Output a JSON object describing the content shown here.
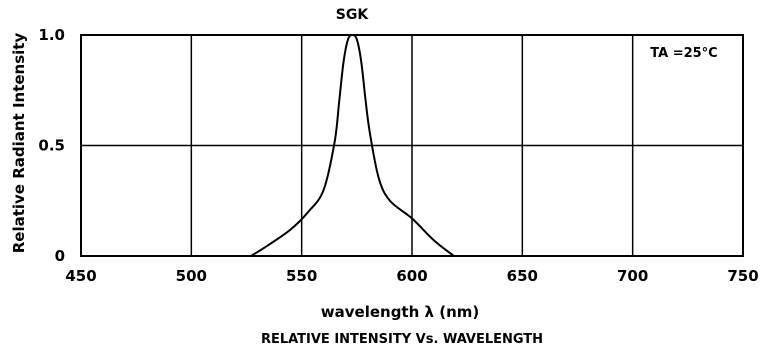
{
  "chart_data": {
    "type": "line",
    "title": "SGK",
    "xlabel": "wavelength  λ (nm)",
    "ylabel": "Relative Radiant Intensity",
    "caption": "RELATIVE INTENSITY Vs. WAVELENGTH",
    "annotation": "TA =25°C",
    "xlim": [
      450,
      750
    ],
    "ylim": [
      0,
      1.0
    ],
    "x_ticks": [
      450,
      500,
      550,
      600,
      650,
      700,
      750
    ],
    "x_tick_labels": [
      "450",
      "500",
      "550",
      "600",
      "650",
      "700",
      "750"
    ],
    "y_ticks": [
      0,
      0.5,
      1.0
    ],
    "y_tick_labels": [
      "0",
      "0.5",
      "1.0"
    ],
    "grid": true,
    "series": [
      {
        "x": [
          527,
          535,
          545,
          553,
          560,
          565,
          567,
          569,
          571,
          573,
          575,
          577,
          579,
          581,
          585,
          590,
          600,
          610,
          619
        ],
        "y": [
          0.0,
          0.05,
          0.12,
          0.2,
          0.3,
          0.52,
          0.7,
          0.88,
          0.98,
          1.0,
          0.98,
          0.88,
          0.7,
          0.55,
          0.35,
          0.25,
          0.17,
          0.07,
          0.0
        ]
      }
    ]
  }
}
